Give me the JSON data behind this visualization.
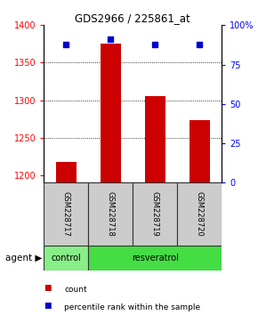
{
  "title": "GDS2966 / 225861_at",
  "samples": [
    "GSM228717",
    "GSM228718",
    "GSM228719",
    "GSM228720"
  ],
  "bar_values": [
    1218,
    1375,
    1305,
    1273
  ],
  "percentile_values": [
    88,
    91,
    88,
    88
  ],
  "ylim_left": [
    1190,
    1400
  ],
  "ylim_right": [
    0,
    100
  ],
  "yticks_left": [
    1200,
    1250,
    1300,
    1350,
    1400
  ],
  "yticks_right": [
    0,
    25,
    50,
    75,
    100
  ],
  "ytick_labels_right": [
    "0",
    "25",
    "50",
    "75",
    "100%"
  ],
  "bar_color": "#cc0000",
  "dot_color": "#0000cc",
  "agent_groups": [
    {
      "label": "control",
      "color": "#88ee88",
      "span": [
        0,
        1
      ]
    },
    {
      "label": "resveratrol",
      "color": "#44dd44",
      "span": [
        1,
        4
      ]
    }
  ],
  "legend_items": [
    {
      "color": "#cc0000",
      "label": "count"
    },
    {
      "color": "#0000cc",
      "label": "percentile rank within the sample"
    }
  ],
  "sample_box_color": "#cccccc",
  "sample_box_edgecolor": "#333333"
}
